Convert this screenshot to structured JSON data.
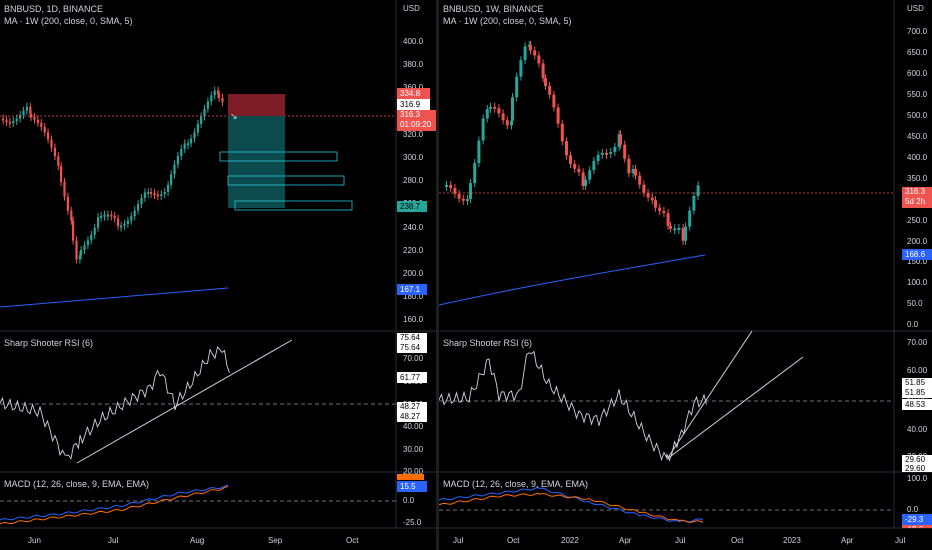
{
  "left": {
    "symbol": "BNBUSD, 1D, BINANCE",
    "ma": "MA · 1W (200, close, 0, SMA, 5)",
    "currency": "USD",
    "price_axis": [
      "400.0",
      "380.0",
      "360.0",
      "340.0",
      "320.0",
      "300.0",
      "280.0",
      "260.0",
      "240.0",
      "220.0",
      "200.0",
      "180.0",
      "160.0",
      "140.0"
    ],
    "badges": {
      "target": "334.8",
      "open": "316.9",
      "last": "316.3",
      "timer": "01:09:20",
      "stop": "238.7",
      "ma": "167.1"
    },
    "rsi": {
      "title": "Sharp Shooter RSI (6)",
      "axis": [
        "70.00",
        "60.00",
        "50.00",
        "40.00",
        "30.00",
        "20.00"
      ],
      "badges": [
        "75.64",
        "75.64",
        "61.77",
        "48.27",
        "48.27"
      ]
    },
    "macd": {
      "title": "MACD (12, 26, close, 9, EMA, EMA)",
      "axis": [
        "0.0",
        "-25.0"
      ],
      "badges": [
        "15.5"
      ]
    },
    "time_axis": [
      "Jun",
      "Jul",
      "Aug",
      "Sep",
      "Oct"
    ],
    "colors": {
      "up": "#26a69a",
      "down": "#ef5350",
      "ma": "#2962ff",
      "target_zone": "#7f1d26",
      "stop_zone": "#0b4a4d"
    }
  },
  "right": {
    "symbol": "BNBUSD, 1W, BINANCE",
    "ma": "MA · 1W (200, close, 0, SMA, 5)",
    "currency": "USD",
    "price_axis": [
      "700.0",
      "650.0",
      "600.0",
      "550.0",
      "500.0",
      "450.0",
      "400.0",
      "350.0",
      "300.0",
      "250.0",
      "200.0",
      "150.0",
      "100.0",
      "50.0",
      "0.0"
    ],
    "badges": {
      "last": "316.3",
      "timer": "5d 2h",
      "ma": "168.6"
    },
    "rsi": {
      "title": "Sharp Shooter RSI (6)",
      "axis": [
        "70.00",
        "60.00",
        "50.00",
        "40.00",
        "30.00"
      ],
      "badges": [
        "51.85",
        "51.85",
        "48.53",
        "29.60",
        "29.60"
      ]
    },
    "macd": {
      "title": "MACD (12, 26, close, 9, EMA, EMA)",
      "axis": [
        "100.0",
        "0.0"
      ],
      "badges": [
        "-29.3",
        "-19.6"
      ]
    },
    "time_axis": [
      "Jul",
      "Oct",
      "2022",
      "Apr",
      "Jul",
      "Oct",
      "2023",
      "Apr",
      "Jul"
    ]
  }
}
